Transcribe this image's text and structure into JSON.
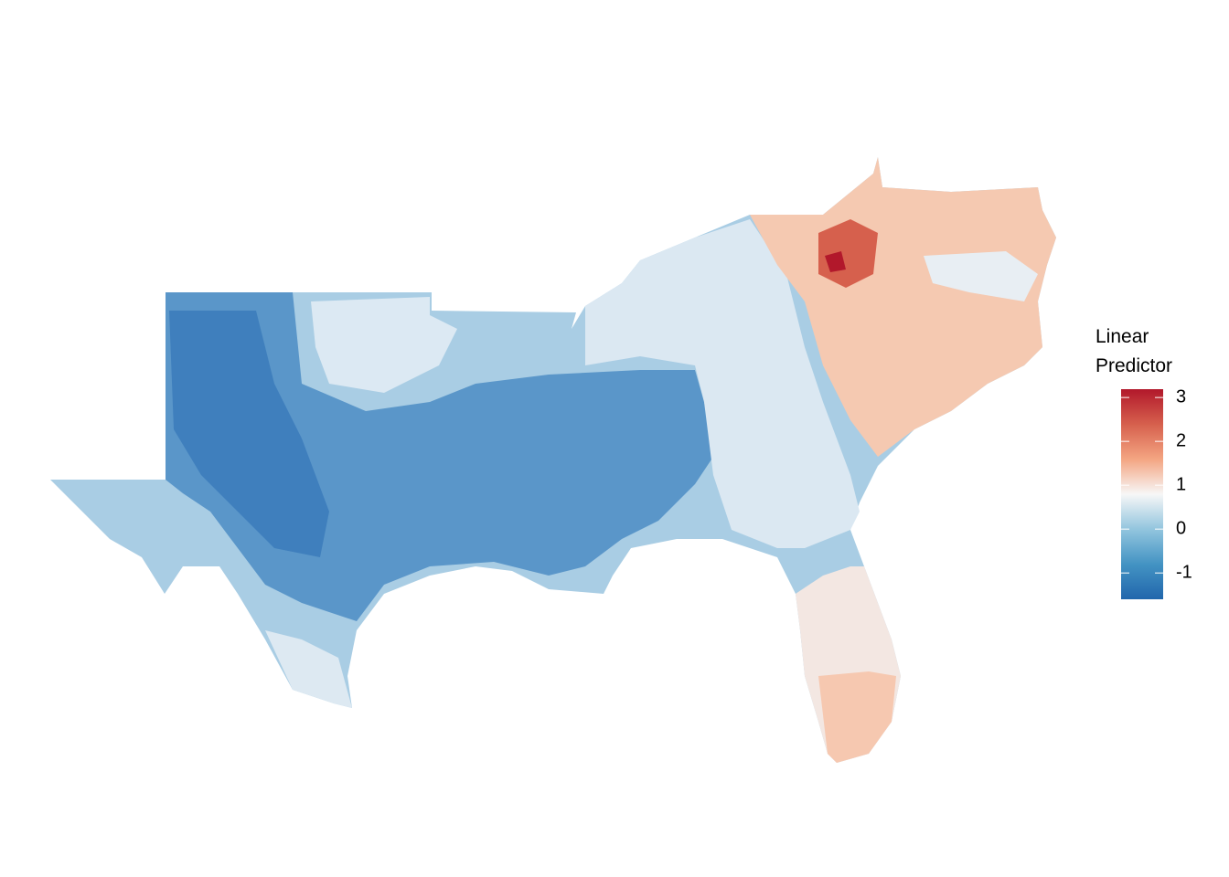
{
  "legend": {
    "title_lines": [
      "Linear",
      "Predictor"
    ],
    "range": [
      -1.6,
      3.19
    ],
    "ticks": [
      3,
      2,
      1,
      0,
      -1
    ],
    "colors": [
      "#2166ac",
      "#4393c3",
      "#92c5de",
      "#f7f7f7",
      "#f4a582",
      "#d6604d",
      "#b2182b"
    ]
  }
}
